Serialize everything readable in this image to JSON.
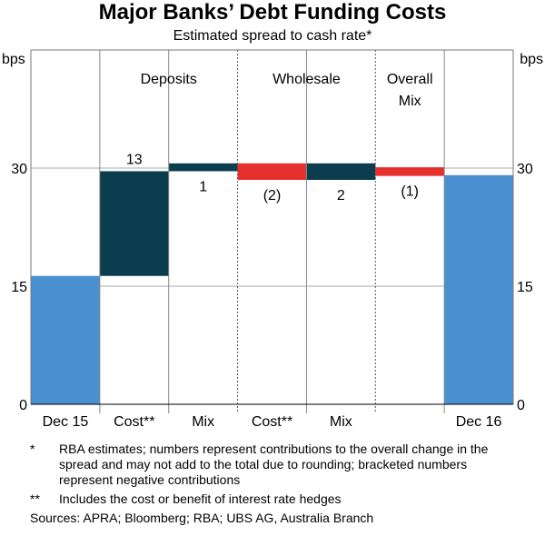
{
  "chart_data": {
    "type": "waterfall",
    "title": "Major Banks’ Debt Funding Costs",
    "subtitle": "Estimated spread to cash rate*",
    "ylabel_left": "bps",
    "ylabel_right": "bps",
    "ylim": [
      0,
      45
    ],
    "yticks": [
      0,
      15,
      30
    ],
    "categories": [
      "Dec 15",
      "Cost**",
      "Mix",
      "Cost**",
      "Mix",
      "",
      "Dec 16"
    ],
    "groups": [
      {
        "label": "Deposits",
        "from": 1,
        "to": 2
      },
      {
        "label": "Wholesale",
        "from": 3,
        "to": 4
      },
      {
        "label": "Overall Mix",
        "from": 5,
        "to": 5
      }
    ],
    "bars": [
      {
        "category": "Dec 15",
        "kind": "total",
        "start": 0,
        "end": 16.3,
        "label": ""
      },
      {
        "category": "Cost**",
        "kind": "increase",
        "start": 16.3,
        "end": 29.6,
        "label": "13",
        "label_pos": "above"
      },
      {
        "category": "Mix",
        "kind": "increase",
        "start": 29.6,
        "end": 30.6,
        "label": "1",
        "label_pos": "below"
      },
      {
        "category": "Cost**",
        "kind": "decrease",
        "start": 30.6,
        "end": 28.5,
        "label": "(2)",
        "label_pos": "below"
      },
      {
        "category": "Mix",
        "kind": "increase",
        "start": 28.5,
        "end": 30.6,
        "label": "2",
        "label_pos": "below"
      },
      {
        "category": "",
        "kind": "decrease",
        "start": 30.1,
        "end": 29.0,
        "label": "(1)",
        "label_pos": "below"
      },
      {
        "category": "Dec 16",
        "kind": "total",
        "start": 0,
        "end": 29.1,
        "label": ""
      }
    ],
    "colors": {
      "total": "#4a8fd0",
      "increase": "#0b3d4f",
      "decrease": "#e5302d"
    }
  },
  "notes": [
    {
      "mark": "*",
      "text": "RBA estimates; numbers represent contributions to the overall change in the spread and may not add to the total due to rounding; bracketed numbers represent negative contributions"
    },
    {
      "mark": "**",
      "text": "Includes the cost or benefit of interest rate hedges"
    }
  ],
  "sources": "Sources:  APRA; Bloomberg; RBA; UBS AG, Australia Branch"
}
